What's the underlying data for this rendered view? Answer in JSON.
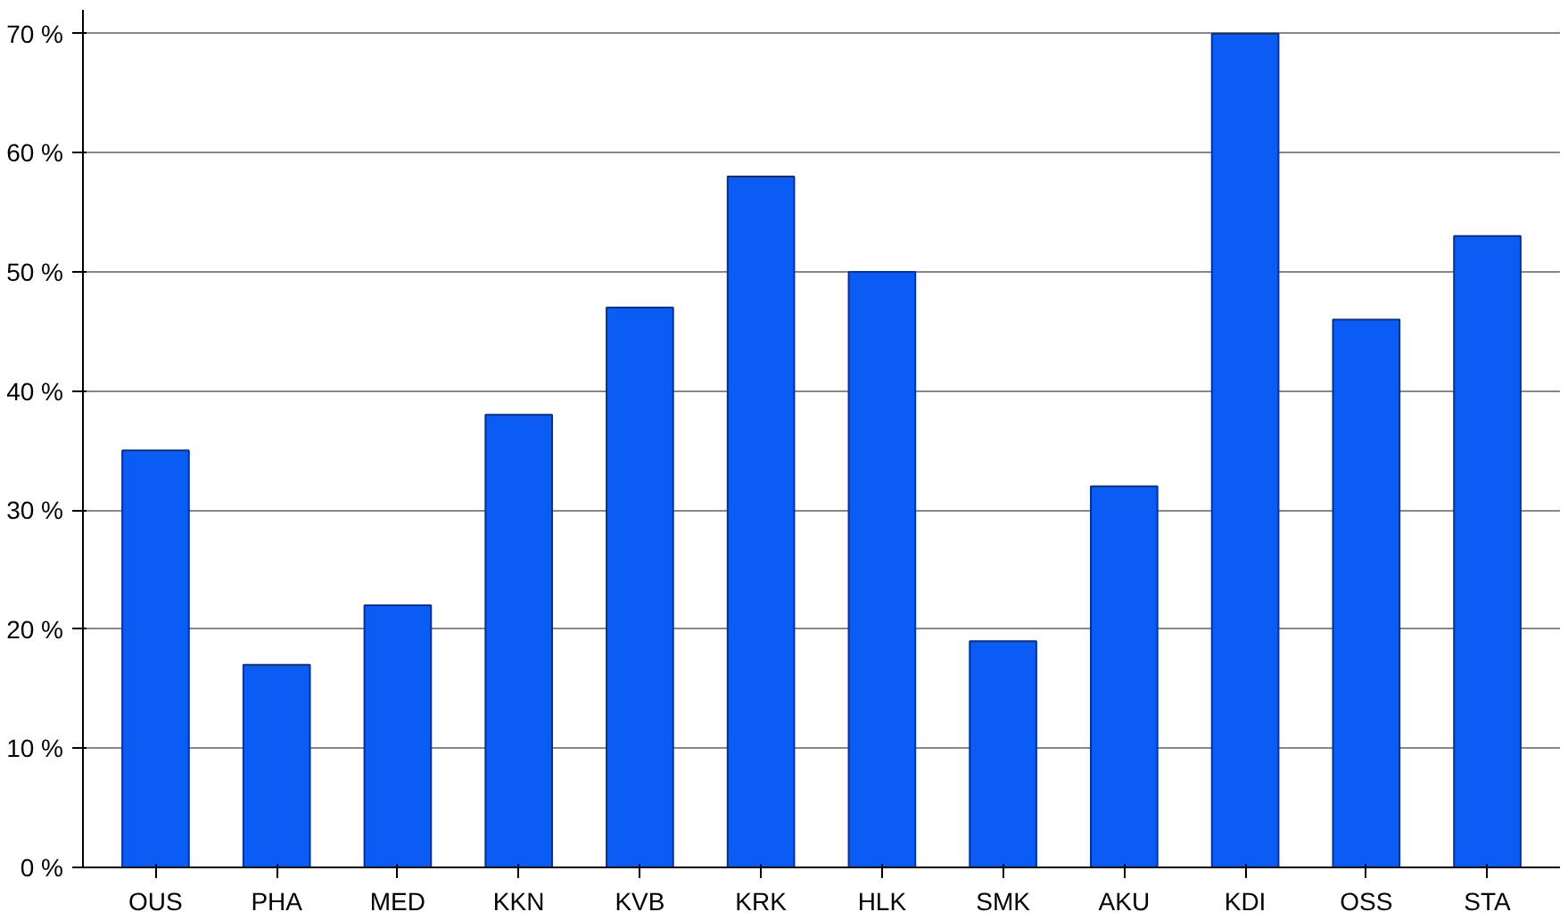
{
  "chart_data": {
    "type": "bar",
    "categories": [
      "OUS",
      "PHA",
      "MED",
      "KKN",
      "KVB",
      "KRK",
      "HLK",
      "SMK",
      "AKU",
      "KDI",
      "OSS",
      "STA"
    ],
    "values": [
      35,
      17,
      22,
      38,
      47,
      58,
      50,
      19,
      32,
      70,
      46,
      53
    ],
    "color": "#0a5cf5",
    "ylim": [
      0,
      72
    ],
    "yticks": [
      {
        "value": 0,
        "label": "0 %"
      },
      {
        "value": 10,
        "label": "10 %"
      },
      {
        "value": 20,
        "label": "20 %"
      },
      {
        "value": 30,
        "label": "30 %"
      },
      {
        "value": 40,
        "label": "40 %"
      },
      {
        "value": 50,
        "label": "50 %"
      },
      {
        "value": 60,
        "label": "60 %"
      },
      {
        "value": 70,
        "label": "70 %"
      }
    ],
    "grid": "y"
  }
}
